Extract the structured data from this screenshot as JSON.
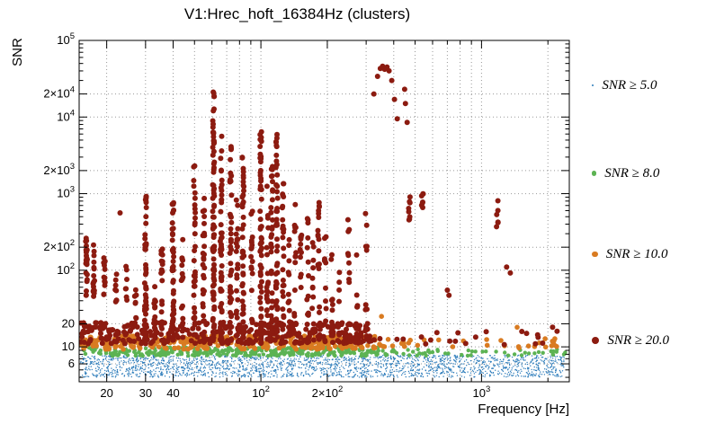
{
  "chart_data": {
    "type": "scatter",
    "title": "V1:Hrec_hoft_16384Hz (clusters)",
    "xlabel": "Frequency [Hz]",
    "ylabel": "SNR",
    "x_scale": "log",
    "y_scale": "log",
    "x_range": [
      15,
      2500
    ],
    "y_range": [
      3.5,
      100000
    ],
    "grid": true,
    "grid_color": "#999999",
    "x_ticks": [
      {
        "v": 20,
        "label": "20"
      },
      {
        "v": 30,
        "label": "30"
      },
      {
        "v": 40,
        "label": "40"
      },
      {
        "v": 100,
        "label": "10^2"
      },
      {
        "v": 200,
        "label": "2×10^2"
      },
      {
        "v": 1000,
        "label": "10^3"
      }
    ],
    "y_ticks": [
      {
        "v": 100000,
        "label": "10^5"
      },
      {
        "v": 20000,
        "label": "2×10^4"
      },
      {
        "v": 10000,
        "label": "10^4"
      },
      {
        "v": 2000,
        "label": "2×10^3"
      },
      {
        "v": 1000,
        "label": "10^3"
      },
      {
        "v": 200,
        "label": "2×10^2"
      },
      {
        "v": 100,
        "label": "10^2"
      },
      {
        "v": 20,
        "label": "20"
      },
      {
        "v": 10,
        "label": "10"
      },
      {
        "v": 6,
        "label": "6"
      }
    ],
    "legend_position": "right",
    "series_order": [
      "snr5",
      "snr8",
      "snr10",
      "snr20"
    ],
    "series": {
      "snr5": {
        "label": "SNR ≥ 5.0",
        "color": "#2b7bba",
        "r": 0.7,
        "legend_r": 1.2
      },
      "snr8": {
        "label": "SNR ≥ 8.0",
        "color": "#5cb353",
        "r": 2.2,
        "legend_r": 2.6
      },
      "snr10": {
        "label": "SNR ≥ 10.0",
        "color": "#d97b21",
        "r": 2.8,
        "legend_r": 3.4
      },
      "snr20": {
        "label": "SNR ≥ 20.0",
        "color": "#8c1b10",
        "r": 3.0,
        "legend_r": 4.2
      }
    },
    "bands": [
      {
        "series": "snr5",
        "fmin": 15.2,
        "fmax": 2400,
        "ymin": 4.0,
        "ymax": 7.8,
        "n": 2200
      },
      {
        "series": "snr8",
        "fmin": 15.2,
        "fmax": 340,
        "ymin": 7.6,
        "ymax": 9.9,
        "n": 330
      },
      {
        "series": "snr8",
        "fmin": 340,
        "fmax": 2400,
        "ymin": 7.6,
        "ymax": 9.4,
        "n": 55
      },
      {
        "series": "snr10",
        "fmin": 15.2,
        "fmax": 330,
        "ymin": 9.3,
        "ymax": 14,
        "n": 300
      },
      {
        "series": "snr10",
        "fmin": 330,
        "fmax": 2400,
        "ymin": 9.5,
        "ymax": 13,
        "n": 35
      },
      {
        "series": "snr20",
        "fmin": 15.2,
        "fmax": 320,
        "ymin": 11,
        "ymax": 21,
        "n": 330
      },
      {
        "series": "snr20",
        "fmin": 320,
        "fmax": 2300,
        "ymin": 10.5,
        "ymax": 16,
        "n": 20
      }
    ],
    "columns": [
      {
        "f": 16.2,
        "ymin": 45,
        "ymax": 300,
        "n": 22
      },
      {
        "f": 17.5,
        "ymin": 40,
        "ymax": 250,
        "n": 16
      },
      {
        "f": 19.5,
        "ymin": 32,
        "ymax": 190,
        "n": 12
      },
      {
        "f": 22,
        "ymin": 26,
        "ymax": 90,
        "n": 8
      },
      {
        "f": 24.5,
        "ymin": 38,
        "ymax": 120,
        "n": 7
      },
      {
        "f": 27,
        "ymin": 13,
        "ymax": 60,
        "n": 8
      },
      {
        "f": 30,
        "ymin": 11,
        "ymax": 950,
        "n": 50
      },
      {
        "f": 33,
        "ymin": 11,
        "ymax": 130,
        "n": 15
      },
      {
        "f": 35.5,
        "ymin": 11,
        "ymax": 230,
        "n": 18
      },
      {
        "f": 40,
        "ymin": 11,
        "ymax": 900,
        "n": 50
      },
      {
        "f": 44,
        "ymin": 11,
        "ymax": 260,
        "n": 15
      },
      {
        "f": 50,
        "ymin": 11,
        "ymax": 2600,
        "n": 35
      },
      {
        "f": 55,
        "ymin": 11,
        "ymax": 1200,
        "n": 28
      },
      {
        "f": 61,
        "ymin": 11,
        "ymax": 9000,
        "n": 80
      },
      {
        "f": 61,
        "ymin": 11000,
        "ymax": 30000,
        "n": 6
      },
      {
        "f": 66,
        "ymin": 11,
        "ymax": 6500,
        "n": 50
      },
      {
        "f": 73,
        "ymin": 11,
        "ymax": 4200,
        "n": 42
      },
      {
        "f": 78,
        "ymin": 11,
        "ymax": 1000,
        "n": 20
      },
      {
        "f": 83,
        "ymin": 11,
        "ymax": 3000,
        "n": 40
      },
      {
        "f": 91,
        "ymin": 11,
        "ymax": 700,
        "n": 18
      },
      {
        "f": 100,
        "ymin": 11,
        "ymax": 7000,
        "n": 62
      },
      {
        "f": 107,
        "ymin": 11,
        "ymax": 1400,
        "n": 22
      },
      {
        "f": 112,
        "ymin": 11,
        "ymax": 2300,
        "n": 32
      },
      {
        "f": 118,
        "ymin": 11,
        "ymax": 6000,
        "n": 48
      },
      {
        "f": 126,
        "ymin": 11,
        "ymax": 1500,
        "n": 26
      },
      {
        "f": 134,
        "ymin": 11,
        "ymax": 330,
        "n": 12
      },
      {
        "f": 143,
        "ymin": 11,
        "ymax": 760,
        "n": 17
      },
      {
        "f": 152,
        "ymin": 11,
        "ymax": 380,
        "n": 12
      },
      {
        "f": 163,
        "ymin": 11,
        "ymax": 480,
        "n": 13
      },
      {
        "f": 172,
        "ymin": 11,
        "ymax": 260,
        "n": 10
      },
      {
        "f": 183,
        "ymin": 11,
        "ymax": 950,
        "n": 18
      },
      {
        "f": 196,
        "ymin": 11,
        "ymax": 320,
        "n": 11
      },
      {
        "f": 210,
        "ymin": 11,
        "ymax": 170,
        "n": 8
      },
      {
        "f": 226,
        "ymin": 11,
        "ymax": 110,
        "n": 7
      },
      {
        "f": 250,
        "ymin": 11,
        "ymax": 480,
        "n": 11
      },
      {
        "f": 272,
        "ymin": 11,
        "ymax": 210,
        "n": 8
      },
      {
        "f": 300,
        "ymin": 12,
        "ymax": 1000,
        "n": 9
      },
      {
        "f": 470,
        "ymin": 300,
        "ymax": 1000,
        "n": 8
      },
      {
        "f": 540,
        "ymin": 650,
        "ymax": 1000,
        "n": 7
      },
      {
        "f": 1180,
        "ymin": 250,
        "ymax": 900,
        "n": 6
      }
    ],
    "points": [
      {
        "f": 23,
        "snr": 560
      },
      {
        "f": 325,
        "snr": 20000
      },
      {
        "f": 338,
        "snr": 34000
      },
      {
        "f": 348,
        "snr": 43000
      },
      {
        "f": 356,
        "snr": 46000
      },
      {
        "f": 364,
        "snr": 42000
      },
      {
        "f": 373,
        "snr": 45000
      },
      {
        "f": 381,
        "snr": 40000
      },
      {
        "f": 392,
        "snr": 30000
      },
      {
        "f": 403,
        "snr": 17000
      },
      {
        "f": 415,
        "snr": 9500
      },
      {
        "f": 448,
        "snr": 23000
      },
      {
        "f": 452,
        "snr": 15000
      },
      {
        "f": 460,
        "snr": 8500
      },
      {
        "f": 700,
        "snr": 55
      },
      {
        "f": 712,
        "snr": 47
      },
      {
        "f": 1300,
        "snr": 110
      },
      {
        "f": 1350,
        "snr": 92
      },
      {
        "f": 1600,
        "snr": 15
      },
      {
        "f": 2100,
        "snr": 18
      },
      {
        "f": 2200,
        "snr": 16
      },
      {
        "f": 352,
        "snr": 25,
        "series": "snr10"
      },
      {
        "f": 1450,
        "snr": 18,
        "series": "snr10"
      }
    ]
  }
}
